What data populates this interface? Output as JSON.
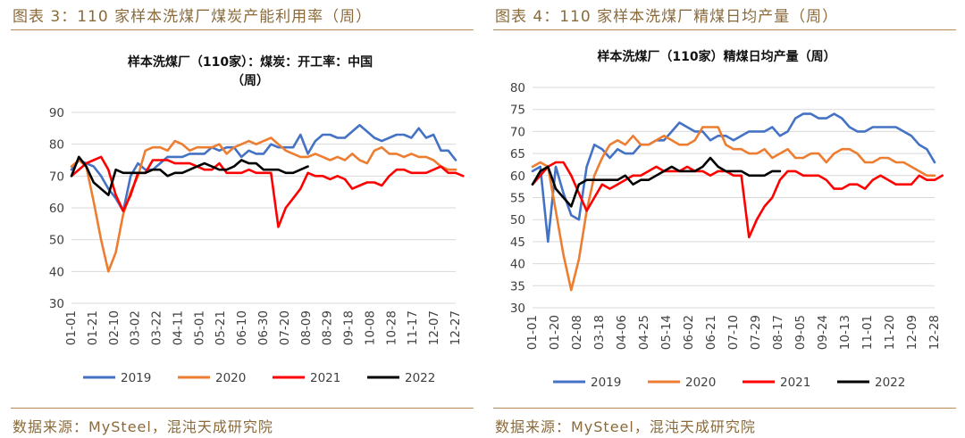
{
  "figures": [
    {
      "caption": "图表 3：110 家样本洗煤厂煤炭产能利用率（周）",
      "source": "数据来源：MySteel，混沌天成研究院"
    },
    {
      "caption": "图表 4：110 家样本洗煤厂精煤日均产量（周）",
      "source": "数据来源：MySteel，混沌天成研究院"
    }
  ],
  "colors": {
    "2019": "#4472c4",
    "2020": "#ed7d31",
    "2021": "#ff0000",
    "2022": "#000000"
  },
  "chart_data": [
    {
      "type": "line",
      "title_lines": [
        "样本洗煤厂（110家）：煤炭：开工率：中国",
        "（周）"
      ],
      "xlabel": "",
      "ylabel": "",
      "ylim": [
        30,
        90
      ],
      "yticks": [
        30,
        40,
        50,
        60,
        70,
        80,
        90
      ],
      "x_tick_labels": [
        "01-01",
        "01-21",
        "02-10",
        "03-02",
        "03-22",
        "04-11",
        "05-01",
        "05-21",
        "06-10",
        "06-30",
        "07-20",
        "08-09",
        "08-29",
        "09-18",
        "10-08",
        "10-28",
        "11-17",
        "12-07",
        "12-27"
      ],
      "grid": "horizontal",
      "legend": "bottom",
      "series": [
        {
          "name": "2019",
          "values": [
            72,
            75,
            74,
            73,
            70,
            66,
            63,
            59,
            70,
            74,
            72,
            72,
            74,
            76,
            76,
            76,
            77,
            77,
            77,
            79,
            78,
            79,
            79,
            76,
            78,
            77,
            77,
            80,
            79,
            79,
            79,
            83,
            77,
            81,
            83,
            83,
            82,
            82,
            84,
            86,
            84,
            82,
            81,
            82,
            83,
            83,
            82,
            85,
            82,
            83,
            78,
            78,
            75
          ]
        },
        {
          "name": "2020",
          "values": [
            73,
            75,
            73,
            62,
            50,
            40,
            46,
            58,
            65,
            70,
            78,
            79,
            79,
            78,
            81,
            80,
            78,
            79,
            79,
            79,
            80,
            77,
            79,
            80,
            81,
            80,
            81,
            82,
            80,
            78,
            77,
            76,
            76,
            77,
            76,
            75,
            76,
            75,
            77,
            75,
            74,
            78,
            79,
            77,
            77,
            76,
            77,
            76,
            76,
            75,
            73,
            72,
            72
          ]
        },
        {
          "name": "2021",
          "values": [
            70,
            72,
            74,
            75,
            76,
            72,
            64,
            59,
            64,
            71,
            71,
            75,
            75,
            75,
            74,
            74,
            74,
            73,
            72,
            72,
            74,
            71,
            71,
            71,
            72,
            71,
            71,
            71,
            54,
            60,
            63,
            66,
            71,
            70,
            70,
            69,
            70,
            69,
            66,
            67,
            68,
            68,
            67,
            70,
            72,
            72,
            71,
            71,
            71,
            72,
            73,
            71,
            71,
            70
          ]
        },
        {
          "name": "2022",
          "values": [
            70,
            76,
            73,
            68,
            66,
            64,
            72,
            71,
            71,
            71,
            71,
            72,
            72,
            70,
            71,
            71,
            72,
            73,
            74,
            73,
            72,
            72,
            73,
            75,
            74,
            74,
            72,
            72,
            72,
            71,
            71,
            72,
            73
          ]
        }
      ]
    },
    {
      "type": "line",
      "title_lines": [
        "样本洗煤厂（110家）精煤日均产量（周）"
      ],
      "xlabel": "",
      "ylabel": "",
      "ylim": [
        30,
        80
      ],
      "yticks": [
        30,
        35,
        40,
        45,
        50,
        55,
        60,
        65,
        70,
        75,
        80
      ],
      "x_tick_labels": [
        "01-01",
        "01-20",
        "02-08",
        "03-18",
        "04-06",
        "04-25",
        "05-14",
        "06-02",
        "06-21",
        "07-10",
        "07-29",
        "08-17",
        "09-05",
        "09-24",
        "10-13",
        "11-01",
        "11-20",
        "12-09",
        "12-28"
      ],
      "grid": "horizontal",
      "legend": "bottom",
      "series": [
        {
          "name": "2019",
          "values": [
            61,
            62,
            45,
            62,
            56,
            51,
            50,
            62,
            67,
            66,
            64,
            66,
            65,
            65,
            67,
            67,
            68,
            68,
            70,
            72,
            71,
            70,
            70,
            68,
            69,
            69,
            68,
            69,
            70,
            70,
            70,
            71,
            69,
            70,
            73,
            74,
            74,
            73,
            73,
            74,
            73,
            71,
            70,
            70,
            71,
            71,
            71,
            71,
            70,
            69,
            67,
            66,
            63
          ]
        },
        {
          "name": "2020",
          "values": [
            62,
            63,
            62,
            52,
            42,
            34,
            41,
            52,
            60,
            64,
            67,
            68,
            67,
            69,
            67,
            67,
            68,
            69,
            68,
            67,
            67,
            68,
            71,
            71,
            71,
            67,
            66,
            66,
            65,
            65,
            66,
            64,
            65,
            66,
            64,
            64,
            65,
            65,
            63,
            65,
            66,
            66,
            65,
            63,
            63,
            64,
            64,
            63,
            63,
            62,
            61,
            60,
            60
          ]
        },
        {
          "name": "2021",
          "values": [
            58,
            60,
            62,
            63,
            63,
            60,
            56,
            52,
            55,
            58,
            57,
            58,
            59,
            60,
            60,
            61,
            62,
            61,
            61,
            61,
            62,
            61,
            61,
            60,
            61,
            61,
            60,
            60,
            46,
            50,
            53,
            55,
            59,
            61,
            61,
            60,
            60,
            60,
            59,
            57,
            57,
            58,
            58,
            57,
            59,
            60,
            59,
            58,
            58,
            58,
            60,
            59,
            59,
            60
          ]
        },
        {
          "name": "2022",
          "values": [
            58,
            61,
            62,
            57,
            55,
            53,
            58,
            59,
            59,
            59,
            59,
            59,
            60,
            58,
            59,
            59,
            60,
            61,
            62,
            61,
            61,
            61,
            62,
            64,
            62,
            61,
            61,
            61,
            60,
            60,
            60,
            61,
            61
          ]
        }
      ]
    }
  ]
}
